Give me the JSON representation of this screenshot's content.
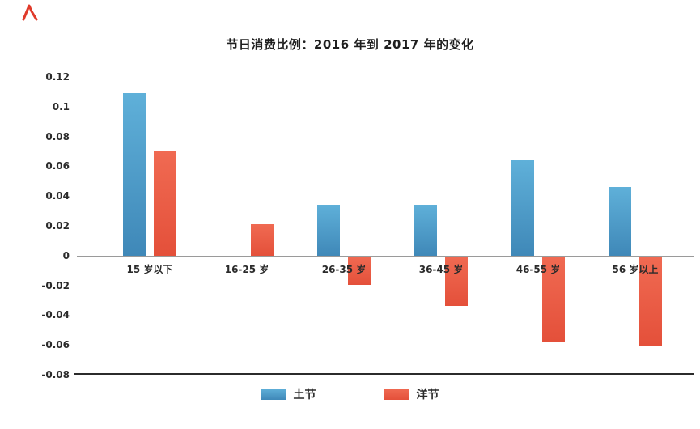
{
  "page": {
    "background": "#ffffff"
  },
  "corner_mark": {
    "color": "#e03a2a"
  },
  "chart_data": {
    "type": "bar",
    "title": "节日消费比例：2016 年到 2017 年的变化",
    "categories": [
      "15 岁以下",
      "16-25 岁",
      "26-35 岁",
      "36-45 岁",
      "46-55 岁",
      "56 岁以上"
    ],
    "series": [
      {
        "name": "土节",
        "color": "#3f88b8",
        "color_light": "#5fb0d9",
        "values": [
          0.109,
          0,
          0.034,
          0.034,
          0.064,
          0.046
        ]
      },
      {
        "name": "洋节",
        "color": "#e4503a",
        "color_light": "#f06a52",
        "values": [
          0.07,
          0.021,
          -0.019,
          -0.033,
          -0.057,
          -0.06
        ]
      }
    ],
    "ylim": [
      -0.08,
      0.12
    ],
    "yticks": [
      0.12,
      0.1,
      0.08,
      0.06,
      0.04,
      0.02,
      0,
      -0.02,
      -0.04,
      -0.06,
      -0.08
    ],
    "grid": false,
    "legend_position": "bottom",
    "xlabel": "",
    "ylabel": ""
  }
}
